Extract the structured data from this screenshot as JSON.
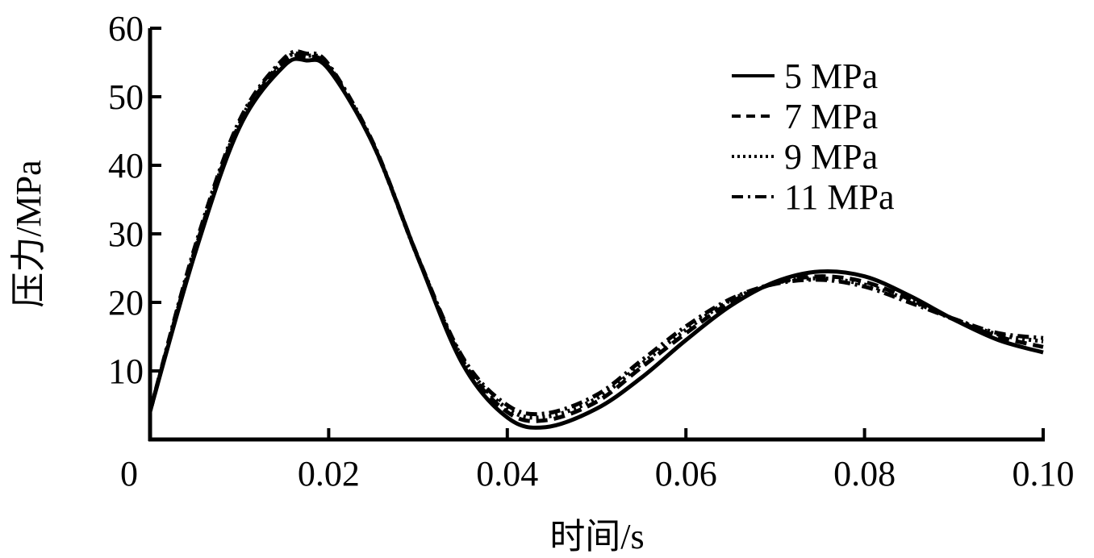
{
  "chart_data": {
    "type": "line",
    "title": "",
    "xlabel": "时间/s",
    "ylabel": "压力/MPa",
    "xlim": [
      0,
      0.1
    ],
    "ylim": [
      0,
      60
    ],
    "grid": false,
    "legend_position": "upper right",
    "x_ticks": [
      "0",
      "0.02",
      "0.04",
      "0.06",
      "0.08",
      "0.10"
    ],
    "y_ticks": [
      "10",
      "20",
      "30",
      "40",
      "50",
      "60"
    ],
    "x": [
      0,
      0.005,
      0.01,
      0.015,
      0.0175,
      0.02,
      0.025,
      0.03,
      0.035,
      0.04,
      0.0443,
      0.05,
      0.055,
      0.06,
      0.065,
      0.07,
      0.075,
      0.08,
      0.085,
      0.09,
      0.095,
      0.1
    ],
    "series": [
      {
        "name": "5 MPa",
        "style": "solid",
        "values": [
          4.1,
          27.0,
          45.5,
          54.5,
          55.3,
          54.0,
          43.0,
          26.5,
          11.0,
          3.2,
          1.8,
          4.5,
          9.0,
          14.5,
          19.5,
          23.0,
          24.5,
          23.8,
          21.0,
          17.5,
          14.5,
          12.7
        ]
      },
      {
        "name": "7 MPa",
        "style": "dashed",
        "values": [
          4.1,
          27.5,
          46.0,
          55.0,
          55.8,
          54.3,
          43.0,
          26.5,
          11.5,
          4.0,
          2.8,
          5.5,
          10.5,
          15.5,
          20.0,
          22.8,
          23.8,
          23.0,
          20.5,
          17.5,
          15.0,
          13.5
        ]
      },
      {
        "name": "9 MPa",
        "style": "dotted",
        "values": [
          4.1,
          27.5,
          46.2,
          55.3,
          56.0,
          54.5,
          43.0,
          26.5,
          11.8,
          4.5,
          3.3,
          6.0,
          11.0,
          16.0,
          20.3,
          22.8,
          23.5,
          22.6,
          20.3,
          17.6,
          15.3,
          14.3
        ]
      },
      {
        "name": "11 MPa",
        "style": "dash-dot",
        "values": [
          4.1,
          28.0,
          46.5,
          55.6,
          56.3,
          54.7,
          43.2,
          26.6,
          12.0,
          5.0,
          3.8,
          6.5,
          11.5,
          16.5,
          20.5,
          22.7,
          23.3,
          22.3,
          20.0,
          17.6,
          15.5,
          14.8
        ]
      }
    ]
  }
}
